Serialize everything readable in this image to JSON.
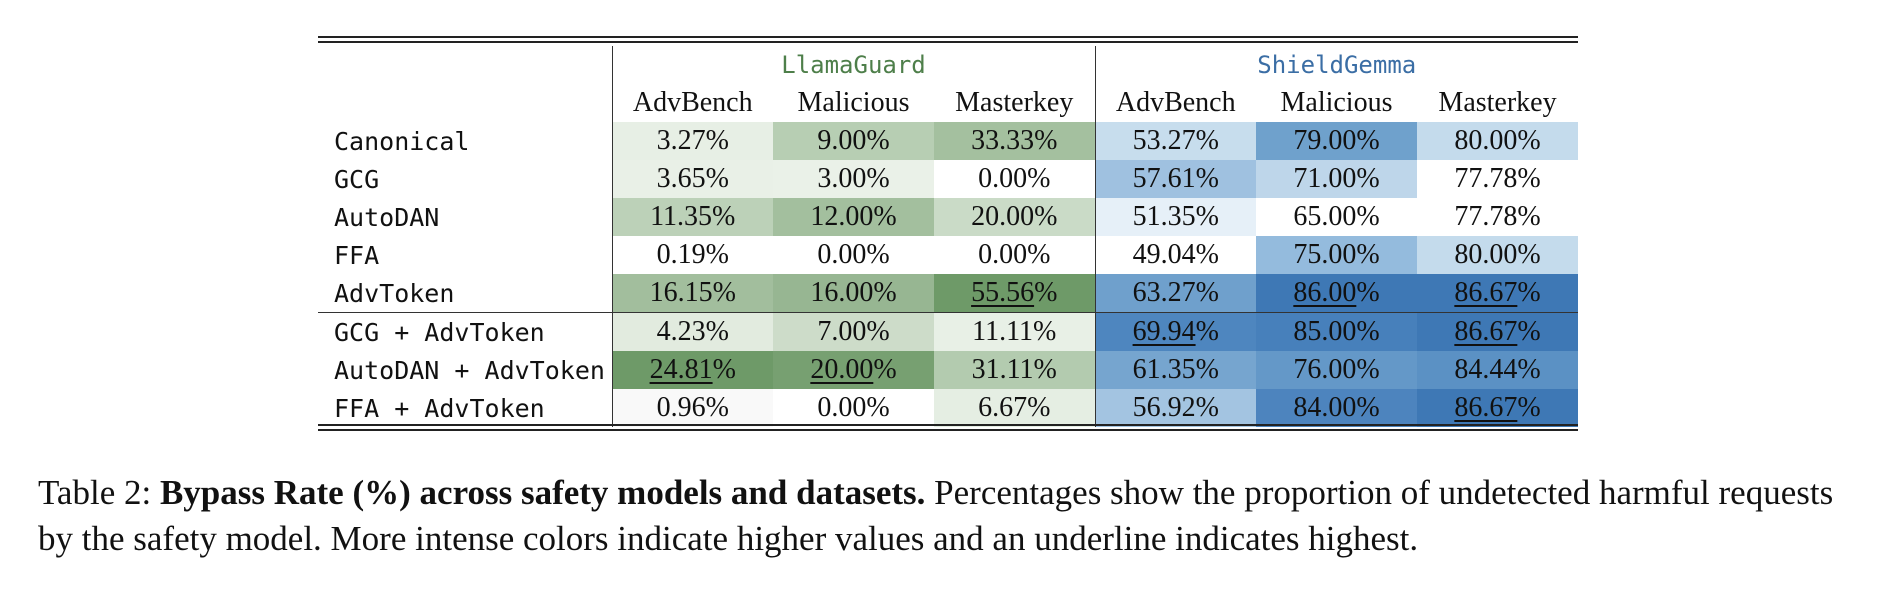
{
  "table": {
    "groups": [
      {
        "label": "LlamaGuard",
        "color": "#4e7f4a"
      },
      {
        "label": "ShieldGemma",
        "color": "#3b6ea5"
      }
    ],
    "columns": [
      "AdvBench",
      "Malicious",
      "Masterkey",
      "AdvBench",
      "Malicious",
      "Masterkey"
    ],
    "rows": [
      {
        "method": "Canonical",
        "values": [
          "3.27%",
          "9.00%",
          "33.33%",
          "53.27%",
          "79.00%",
          "80.00%"
        ],
        "underline": [
          false,
          false,
          false,
          false,
          false,
          false
        ]
      },
      {
        "method": "GCG",
        "values": [
          "3.65%",
          "3.00%",
          "0.00%",
          "57.61%",
          "71.00%",
          "77.78%"
        ],
        "underline": [
          false,
          false,
          false,
          false,
          false,
          false
        ]
      },
      {
        "method": "AutoDAN",
        "values": [
          "11.35%",
          "12.00%",
          "20.00%",
          "51.35%",
          "65.00%",
          "77.78%"
        ],
        "underline": [
          false,
          false,
          false,
          false,
          false,
          false
        ]
      },
      {
        "method": "FFA",
        "values": [
          "0.19%",
          "0.00%",
          "0.00%",
          "49.04%",
          "75.00%",
          "80.00%"
        ],
        "underline": [
          false,
          false,
          false,
          false,
          false,
          false
        ]
      },
      {
        "method": "AdvToken",
        "values": [
          "16.15%",
          "16.00%",
          "55.56%",
          "63.27%",
          "86.00%",
          "86.67%"
        ],
        "underline": [
          false,
          false,
          true,
          false,
          true,
          true
        ]
      },
      {
        "method": "GCG + AdvToken",
        "values": [
          "4.23%",
          "7.00%",
          "11.11%",
          "69.94%",
          "85.00%",
          "86.67%"
        ],
        "underline": [
          false,
          false,
          false,
          true,
          false,
          true
        ]
      },
      {
        "method": "AutoDAN + AdvToken",
        "values": [
          "24.81%",
          "20.00%",
          "31.11%",
          "61.35%",
          "76.00%",
          "84.44%"
        ],
        "underline": [
          true,
          true,
          false,
          false,
          false,
          false
        ]
      },
      {
        "method": "FFA + AdvToken",
        "values": [
          "0.96%",
          "0.00%",
          "6.67%",
          "56.92%",
          "84.00%",
          "86.67%"
        ],
        "underline": [
          false,
          false,
          false,
          false,
          false,
          true
        ]
      }
    ],
    "cell_colors": [
      [
        "#e7efe5",
        "#b7ceb3",
        "#a4c09f",
        "#c7dded",
        "#6fa1cc",
        "#c4dbec"
      ],
      [
        "#e9f0e7",
        "#eaf1e8",
        "#ffffff",
        "#9fc1e0",
        "#bed6ea",
        "#ffffff"
      ],
      [
        "#bcd1b8",
        "#a3bf9e",
        "#cadbc7",
        "#e6f0f8",
        "#ffffff",
        "#ffffff"
      ],
      [
        "#ffffff",
        "#ffffff",
        "#ffffff",
        "#ffffff",
        "#94bbdd",
        "#c4dbec"
      ],
      [
        "#a2be9d",
        "#97b692",
        "#6e9a68",
        "#6fa0cc",
        "#3e78b5",
        "#3e78b5"
      ],
      [
        "#e2ebdf",
        "#cddcc9",
        "#e8f0e6",
        "#4e86bf",
        "#4780bb",
        "#3e78b5"
      ],
      [
        "#6e9a68",
        "#77a071",
        "#b3cbaf",
        "#76a5cf",
        "#6498c8",
        "#5b91c4"
      ],
      [
        "#f9f9f9",
        "#ffffff",
        "#e5eee3",
        "#a3c4e1",
        "#4d84be",
        "#3e78b5"
      ]
    ]
  },
  "caption": {
    "prefix": "Table 2: ",
    "bold": "Bypass Rate (%) across safety models and datasets.",
    "rest": " Percentages show the proportion of undetected harmful requests by the safety model. More intense colors indicate higher values and an underline indicates highest."
  }
}
